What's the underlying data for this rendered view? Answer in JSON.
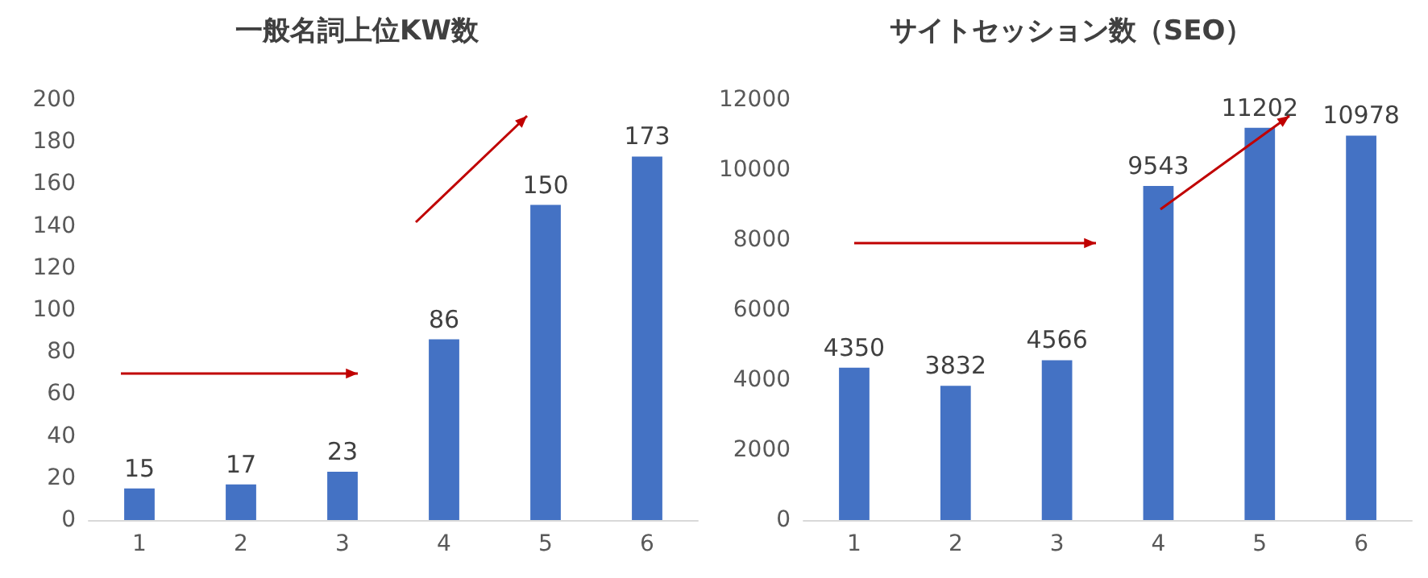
{
  "chart_data": [
    {
      "type": "bar",
      "title": "一般名詞上位KW数",
      "categories": [
        "1",
        "2",
        "3",
        "4",
        "5",
        "6"
      ],
      "values": [
        15,
        17,
        23,
        86,
        150,
        173
      ],
      "color": "#4472c4",
      "ylim": [
        0,
        200
      ],
      "yticks": [
        0,
        20,
        40,
        60,
        80,
        100,
        120,
        140,
        160,
        180,
        200
      ],
      "data_labels": true
    },
    {
      "type": "bar",
      "title": "サイトセッション数（SEO）",
      "categories": [
        "1",
        "2",
        "3",
        "4",
        "5",
        "6"
      ],
      "values": [
        4350,
        3832,
        4566,
        9543,
        11202,
        10978
      ],
      "color": "#4472c4",
      "ylim": [
        0,
        12000
      ],
      "yticks": [
        0,
        2000,
        4000,
        6000,
        8000,
        10000,
        12000
      ],
      "data_labels": true
    }
  ]
}
